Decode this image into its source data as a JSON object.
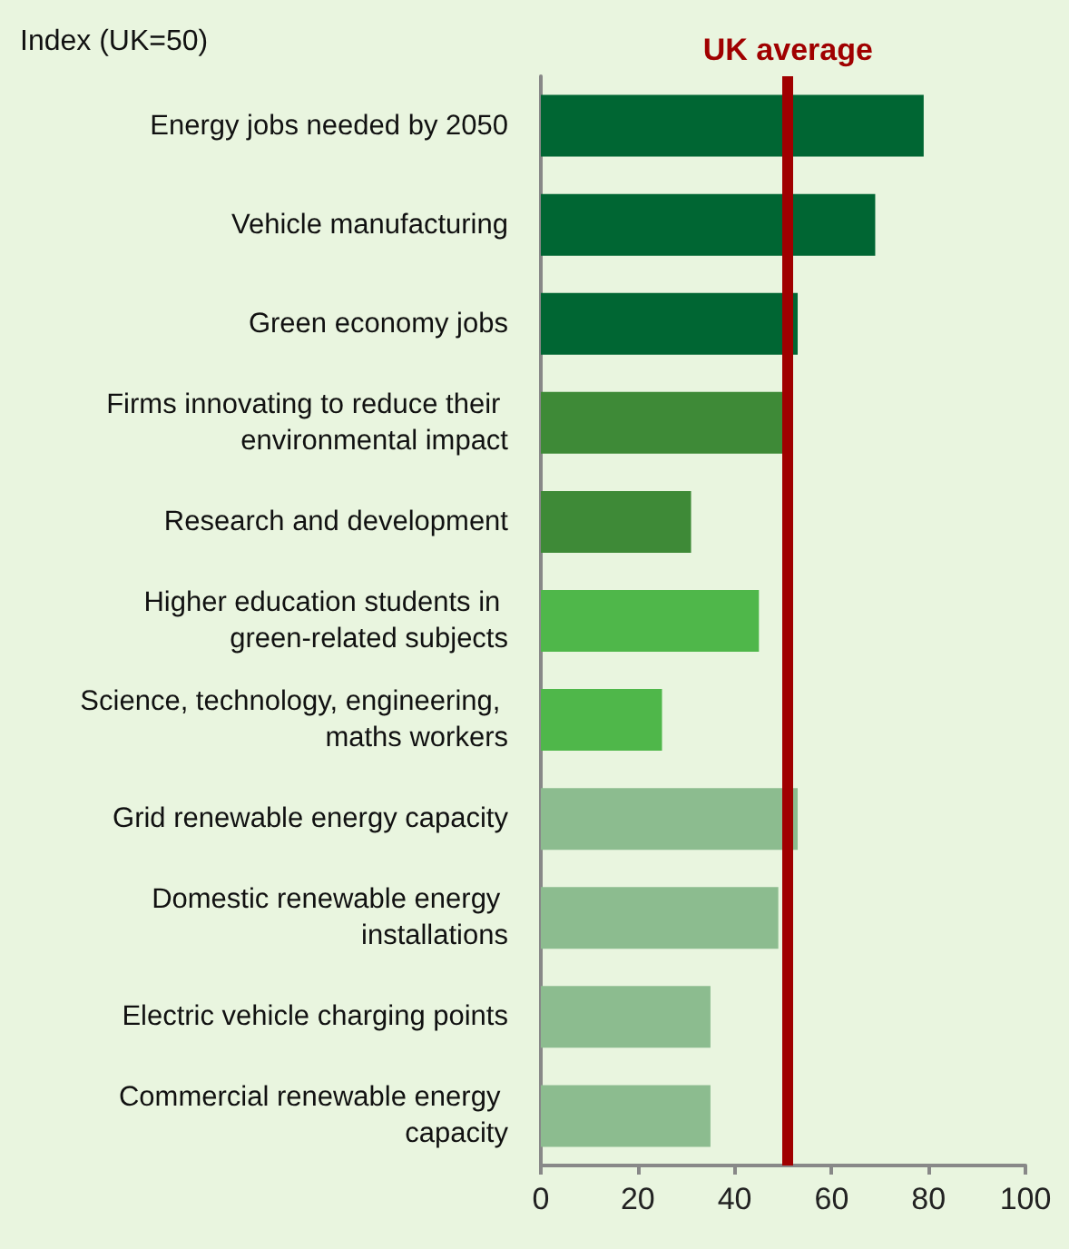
{
  "chart_data": {
    "type": "bar",
    "orientation": "horizontal",
    "xlabel": "Index (UK=50)",
    "categories": [
      "Energy jobs needed by 2050",
      "Vehicle manufacturing",
      "Green economy jobs",
      "Firms innovating to reduce their environmental impact",
      "Research and development",
      "Higher education students in green-related subjects",
      "Science, technology, engineering, maths workers",
      "Grid renewable energy capacity",
      "Domestic renewable energy installations",
      "Electric vehicle charging points",
      "Commercial renewable energy capacity"
    ],
    "values": [
      79,
      69,
      53,
      50,
      31,
      45,
      25,
      53,
      49,
      35,
      35
    ],
    "colors": [
      "#006633",
      "#006633",
      "#006633",
      "#3e8a37",
      "#3e8a37",
      "#4fb74a",
      "#4fb74a",
      "#8cbc8f",
      "#8cbc8f",
      "#8cbc8f",
      "#8cbc8f"
    ],
    "xlim": [
      0,
      100
    ],
    "xticks": [
      0,
      20,
      40,
      60,
      80,
      100
    ],
    "ref_lines": [
      {
        "axis": "x",
        "value": 51,
        "label": "UK average",
        "color": "#a00000"
      }
    ],
    "grid": false
  }
}
